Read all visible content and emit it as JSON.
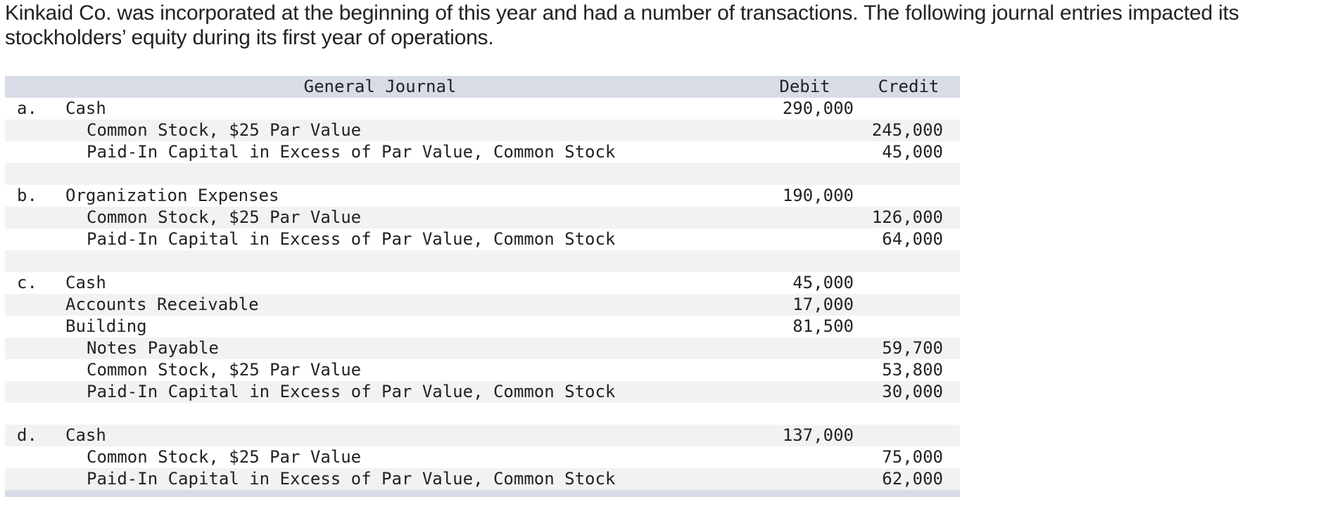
{
  "intro": "Kinkaid Co. was incorporated at the beginning of this year and had a number of transactions. The following journal entries impacted its stockholders’ equity during its first year of operations.",
  "journal": {
    "title": "General Journal",
    "debit_header": "Debit",
    "credit_header": "Credit",
    "rows": [
      {
        "letter": "a.",
        "account": "Cash",
        "indent": 0,
        "debit": "290,000",
        "credit": ""
      },
      {
        "letter": "",
        "account": "Common Stock, $25 Par Value",
        "indent": 1,
        "debit": "",
        "credit": "245,000"
      },
      {
        "letter": "",
        "account": "Paid-In Capital in Excess of Par Value, Common Stock",
        "indent": 1,
        "debit": "",
        "credit": "45,000"
      },
      {
        "letter": "",
        "account": "",
        "indent": 0,
        "debit": "",
        "credit": ""
      },
      {
        "letter": "b.",
        "account": "Organization Expenses",
        "indent": 0,
        "debit": "190,000",
        "credit": ""
      },
      {
        "letter": "",
        "account": "Common Stock, $25 Par Value",
        "indent": 1,
        "debit": "",
        "credit": "126,000"
      },
      {
        "letter": "",
        "account": "Paid-In Capital in Excess of Par Value, Common Stock",
        "indent": 1,
        "debit": "",
        "credit": "64,000"
      },
      {
        "letter": "",
        "account": "",
        "indent": 0,
        "debit": "",
        "credit": ""
      },
      {
        "letter": "c.",
        "account": "Cash",
        "indent": 0,
        "debit": "45,000",
        "credit": ""
      },
      {
        "letter": "",
        "account": "Accounts Receivable",
        "indent": 0,
        "debit": "17,000",
        "credit": ""
      },
      {
        "letter": "",
        "account": "Building",
        "indent": 0,
        "debit": "81,500",
        "credit": ""
      },
      {
        "letter": "",
        "account": "Notes Payable",
        "indent": 1,
        "debit": "",
        "credit": "59,700"
      },
      {
        "letter": "",
        "account": "Common Stock, $25 Par Value",
        "indent": 1,
        "debit": "",
        "credit": "53,800"
      },
      {
        "letter": "",
        "account": "Paid-In Capital in Excess of Par Value, Common Stock",
        "indent": 1,
        "debit": "",
        "credit": "30,000"
      },
      {
        "letter": "",
        "account": "",
        "indent": 0,
        "debit": "",
        "credit": ""
      },
      {
        "letter": "d.",
        "account": "Cash",
        "indent": 0,
        "debit": "137,000",
        "credit": ""
      },
      {
        "letter": "",
        "account": "Common Stock, $25 Par Value",
        "indent": 1,
        "debit": "",
        "credit": "75,000"
      },
      {
        "letter": "",
        "account": "Paid-In Capital in Excess of Par Value, Common Stock",
        "indent": 1,
        "debit": "",
        "credit": "62,000"
      }
    ]
  }
}
